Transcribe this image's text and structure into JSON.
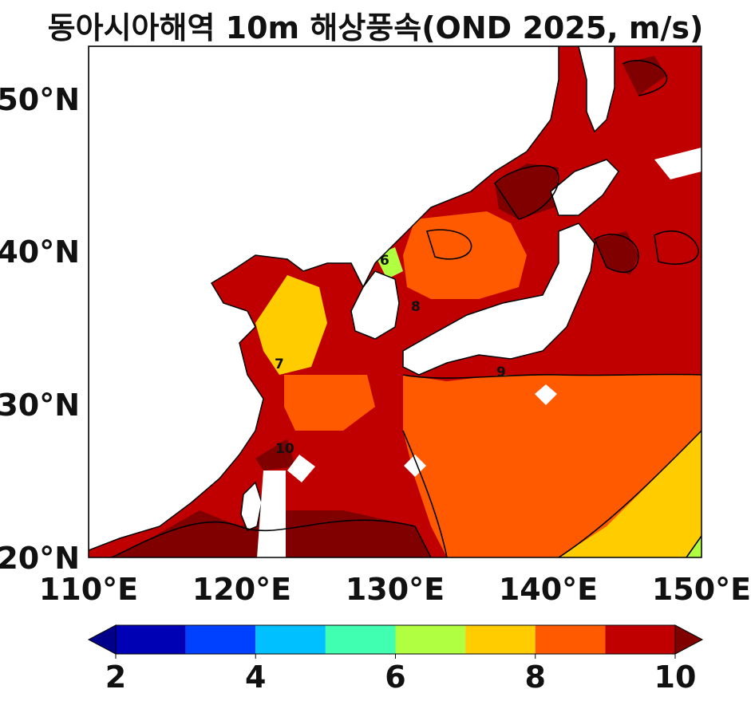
{
  "title": "동아시아해역 10m 해상풍속(OND 2025, m/s)",
  "map": {
    "lon_range": [
      110,
      150
    ],
    "lat_range": [
      20,
      53.3
    ],
    "lon_ticks": [
      "110°E",
      "120°E",
      "130°E",
      "140°E",
      "150°E"
    ],
    "lat_ticks": [
      "20°N",
      "30°N",
      "40°N",
      "50°N"
    ],
    "land_color": "#ffffff",
    "contour_labels": [
      "6",
      "7",
      "8",
      "9",
      "10"
    ]
  },
  "colorbar": {
    "ticks": [
      "2",
      "4",
      "6",
      "8",
      "10"
    ],
    "levels": [
      {
        "range": "2-3",
        "color": "#0000b4"
      },
      {
        "range": "3-4",
        "color": "#0040ff"
      },
      {
        "range": "4-5",
        "color": "#00c0ff"
      },
      {
        "range": "5-6",
        "color": "#40ffb0"
      },
      {
        "range": "6-7",
        "color": "#b0ff40"
      },
      {
        "range": "7-8",
        "color": "#ffcc00"
      },
      {
        "range": "8-9",
        "color": "#ff5a00"
      },
      {
        "range": "9-10",
        "color": "#c00000"
      }
    ],
    "under_color": "#00008b",
    "over_color": "#800000",
    "extend": "both"
  }
}
